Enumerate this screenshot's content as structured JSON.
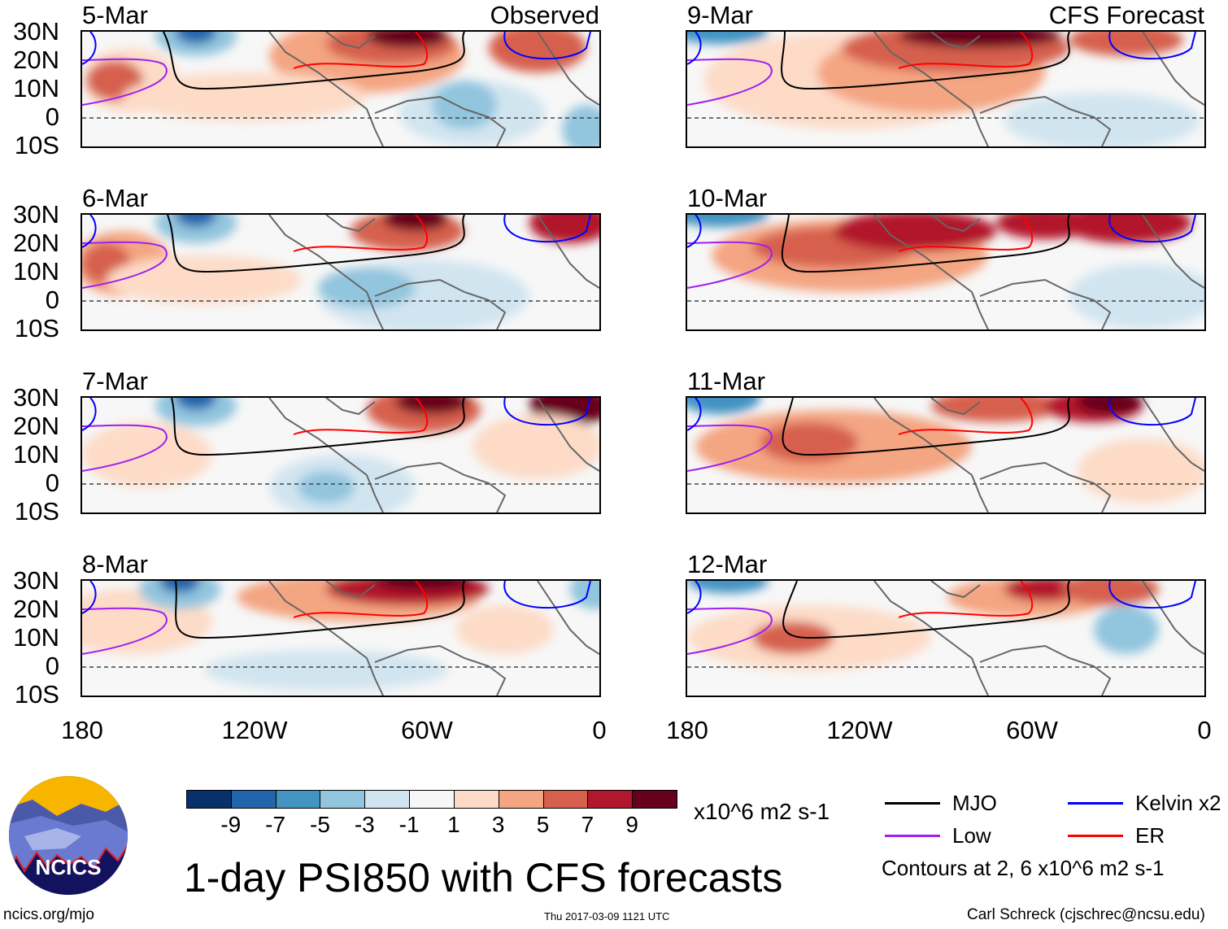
{
  "panels": [
    {
      "date": "5-Mar",
      "tag": "Observed"
    },
    {
      "date": "6-Mar"
    },
    {
      "date": "7-Mar"
    },
    {
      "date": "8-Mar"
    },
    {
      "date": "9-Mar",
      "tag": "CFS Forecast"
    },
    {
      "date": "10-Mar"
    },
    {
      "date": "11-Mar"
    },
    {
      "date": "12-Mar"
    }
  ],
  "lat_labels": [
    "30N",
    "20N",
    "10N",
    "0",
    "10S"
  ],
  "lon_labels": [
    "180",
    "120W",
    "60W",
    "0"
  ],
  "colorbar": {
    "colors": [
      "#08306b",
      "#2166ac",
      "#4393c3",
      "#92c5de",
      "#d1e5f0",
      "#f7f7f7",
      "#fddbc7",
      "#f4a582",
      "#d6604d",
      "#b2182b",
      "#67001f"
    ],
    "labels": [
      "-9",
      "-7",
      "-5",
      "-3",
      "-1",
      "1",
      "3",
      "5",
      "7",
      "9"
    ],
    "units": "x10^6 m2 s-1"
  },
  "legend": {
    "items": [
      {
        "label": "MJO",
        "color": "#000000"
      },
      {
        "label": "Kelvin x2",
        "color": "#0000ff"
      },
      {
        "label": "Low",
        "color": "#a020f0"
      },
      {
        "label": "ER",
        "color": "#ff0000"
      }
    ],
    "contours_note": "Contours at 2, 6 x10^6 m2 s-1"
  },
  "title": "1-day PSI850 with CFS forecasts",
  "logo_text": "NCICS",
  "footer": {
    "url": "ncics.org/mjo",
    "timestamp": "Thu 2017-03-09 1121 UTC",
    "author": "Carl Schreck (cjschrec@ncsu.edu)"
  }
}
